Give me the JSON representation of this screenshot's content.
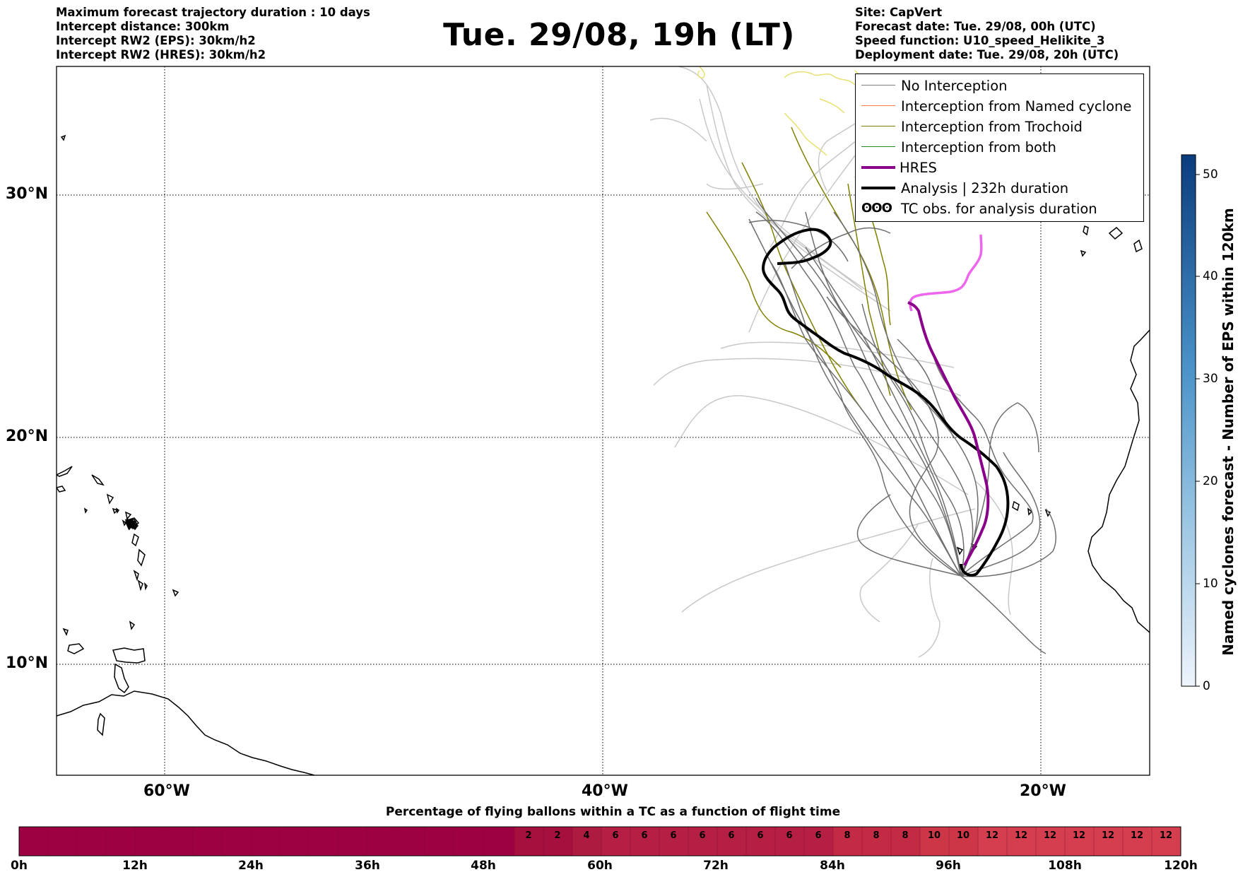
{
  "header_left": [
    "Maximum forecast trajectory duration : 10 days",
    "Intercept distance: 300km",
    "Intercept RW2 (EPS):  30km/h2",
    "Intercept RW2 (HRES): 30km/h2"
  ],
  "title": "Tue. 29/08, 19h (LT)",
  "header_right": [
    "Site: CapVert",
    "Forecast date: Tue. 29/08, 00h (UTC)",
    "Speed function: U10_speed_Helikite_3",
    "Deployment date: Tue. 29/08, 20h (UTC)"
  ],
  "lat_labels": [
    "30°N",
    "20°N",
    "10°N"
  ],
  "lon_labels": [
    "60°W",
    "40°W",
    "20°W"
  ],
  "legend": [
    {
      "label": "No Interception",
      "color": "#808080"
    },
    {
      "label": "Interception from Named cyclone",
      "color": "#ff7f50"
    },
    {
      "label": "Interception from Trochoid",
      "color": "#808000"
    },
    {
      "label": "Interception from both",
      "color": "#228b22"
    },
    {
      "label": "HRES",
      "color": "#8b008b"
    },
    {
      "label": "Analysis | 232h duration",
      "color": "#000000"
    },
    {
      "label": "TC obs. for analysis duration",
      "symbol": "ʘʘʘ"
    }
  ],
  "colorbar_right": {
    "title": "Named cyclones forecast - Number of EPS within 120km",
    "ticks": [
      "50",
      "40",
      "30",
      "20",
      "10",
      "0"
    ]
  },
  "bottom_bar": {
    "title": "Percentage of flying ballons within a TC as a function of flight time",
    "hour_ticks": [
      "0h",
      "12h",
      "24h",
      "36h",
      "48h",
      "60h",
      "72h",
      "84h",
      "96h",
      "108h",
      "120h"
    ],
    "cell_values": [
      "2",
      "2",
      "4",
      "6",
      "6",
      "6",
      "6",
      "6",
      "6",
      "6",
      "6",
      "8",
      "8",
      "8",
      "10",
      "10",
      "12",
      "12",
      "12",
      "12",
      "12",
      "12",
      "12"
    ]
  }
}
